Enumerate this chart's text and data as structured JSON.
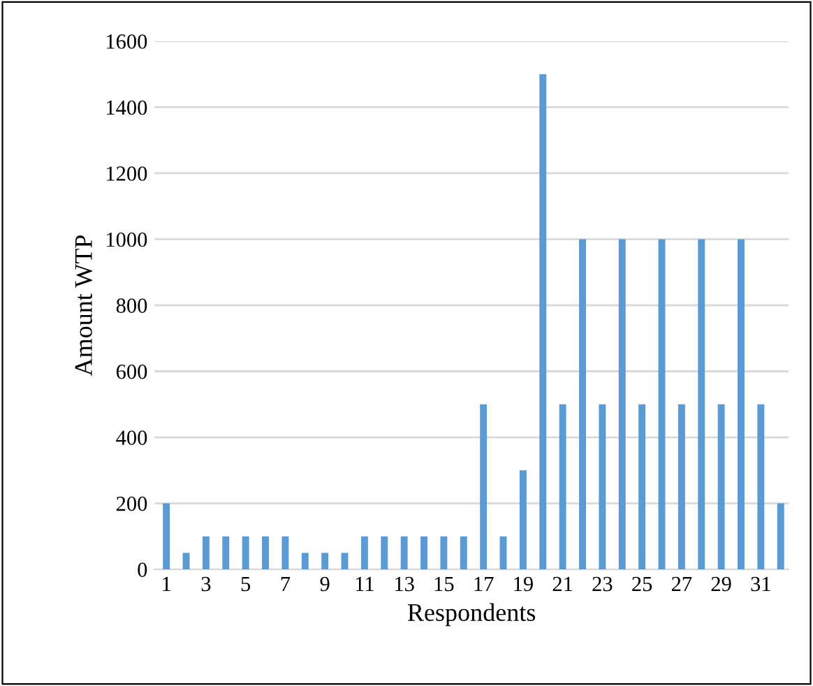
{
  "chart_data": {
    "type": "bar",
    "xlabel": "Respondents",
    "ylabel": "Amount WTP",
    "categories": [
      "1",
      null,
      "3",
      null,
      "5",
      null,
      "7",
      null,
      "9",
      null,
      "11",
      null,
      "13",
      null,
      "15",
      null,
      "17",
      null,
      "19",
      null,
      "21",
      null,
      "23",
      null,
      "25",
      null,
      "27",
      null,
      "29",
      null,
      "31",
      null
    ],
    "values": [
      200,
      50,
      100,
      100,
      100,
      100,
      100,
      50,
      50,
      50,
      100,
      100,
      100,
      100,
      100,
      100,
      500,
      100,
      300,
      1500,
      500,
      1000,
      500,
      1000,
      500,
      1000,
      500,
      1000,
      500,
      1000,
      500,
      200
    ],
    "color": "#5b9bd5",
    "ylim": [
      0,
      1600
    ],
    "yticks": [
      0,
      200,
      400,
      600,
      800,
      1000,
      1200,
      1400,
      1600
    ],
    "grid": "y"
  }
}
